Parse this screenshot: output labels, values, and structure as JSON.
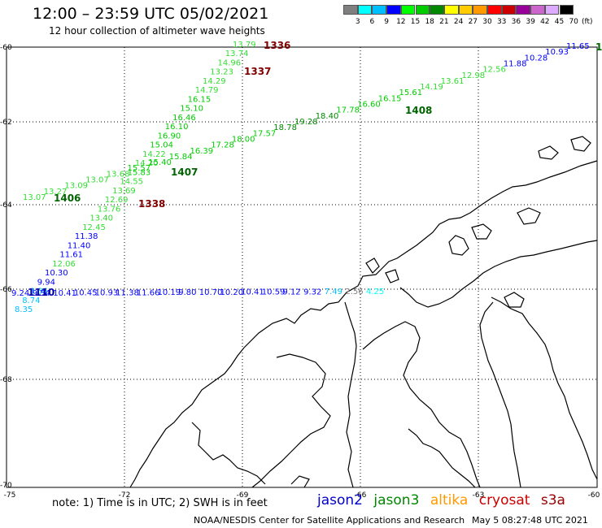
{
  "header": {
    "title": "12:00 – 23:59 UTC 05/02/2021",
    "subtitle": "12 hour collection of altimeter wave heights"
  },
  "scale": {
    "unit": "(ft)",
    "bins": [
      {
        "label": "3",
        "color": "#7f7f7f"
      },
      {
        "label": "6",
        "color": "#00ffff"
      },
      {
        "label": "9",
        "color": "#00bfff"
      },
      {
        "label": "12",
        "color": "#0000ff"
      },
      {
        "label": "15",
        "color": "#00ff00"
      },
      {
        "label": "18",
        "color": "#00cc00"
      },
      {
        "label": "21",
        "color": "#008800"
      },
      {
        "label": "24",
        "color": "#ffff00"
      },
      {
        "label": "27",
        "color": "#ffcc00"
      },
      {
        "label": "30",
        "color": "#ff9900"
      },
      {
        "label": "33",
        "color": "#ff0000"
      },
      {
        "label": "36",
        "color": "#cc0000"
      },
      {
        "label": "39",
        "color": "#990099"
      },
      {
        "label": "42",
        "color": "#cc66cc"
      },
      {
        "label": "45",
        "color": "#ddaaff"
      },
      {
        "label": "70",
        "color": "#000000"
      }
    ]
  },
  "axes": {
    "lat_labels": [
      "-60",
      "-62",
      "-64",
      "-66",
      "-68",
      "-70"
    ],
    "lon_labels": [
      "-75",
      "-72",
      "-69",
      "-66",
      "-63",
      "-60"
    ]
  },
  "pass_labels": [
    {
      "text": "1336",
      "color": "#800000"
    },
    {
      "text": "1337",
      "color": "#800000"
    },
    {
      "text": "1338",
      "color": "#800000"
    },
    {
      "text": "1406",
      "color": "#006400"
    },
    {
      "text": "1407",
      "color": "#006400"
    },
    {
      "text": "1408",
      "color": "#006400"
    },
    {
      "text": "1110",
      "color": "#0000aa"
    },
    {
      "text": "1",
      "color": "#006400"
    }
  ],
  "tracks": {
    "cryosat_1336": [
      "13.79",
      "13.74",
      "14.96",
      "13.23",
      "14.29",
      "14.79",
      "16.15",
      "15.10",
      "16.46",
      "16.10",
      "16.90",
      "15.04",
      "14.22",
      "14.20",
      "15.83",
      "14.55",
      "13.69",
      "12.69",
      "13.76",
      "13.40",
      "12.45",
      "11.38",
      "11.40",
      "11.61",
      "12.06",
      "10.30",
      "9.94",
      "8.86",
      "8.74",
      "8.35"
    ],
    "jason3_upper": [
      "11.65",
      "10.93",
      "10.28",
      "11.88",
      "12.56",
      "12.98",
      "13.61",
      "14.19",
      "15.61",
      "16.15",
      "16.60",
      "17.78",
      "18.40",
      "19.28",
      "18.78",
      "17.57",
      "18.00",
      "17.28",
      "16.39",
      "15.84",
      "15.40",
      "15.57",
      "13.68",
      "13.07",
      "13.09",
      "13.27",
      "13.07"
    ],
    "jason2_mid": [
      "9.24",
      "9.54",
      "10.41",
      "10.45",
      "10.93",
      "11.38",
      "11.66",
      "10.19",
      "9.80",
      "10.70",
      "10.20",
      "10.41",
      "10.59",
      "9.12",
      "9.32",
      "7.49",
      "2.56",
      "4.25"
    ]
  },
  "footer": {
    "note": "note: 1) Time is in UTC; 2) SWH is in feet",
    "satellites": [
      {
        "name": "jason2",
        "color": "#0000cc"
      },
      {
        "name": "jason3",
        "color": "#008800"
      },
      {
        "name": "altika",
        "color": "#ff9900"
      },
      {
        "name": "cryosat",
        "color": "#cc0000"
      },
      {
        "name": "s3a",
        "color": "#990000"
      }
    ],
    "credit": "NOAA/NESDIS Center for Satellite Applications and Research",
    "timestamp": "May  5 08:27:48 UTC 2021"
  }
}
